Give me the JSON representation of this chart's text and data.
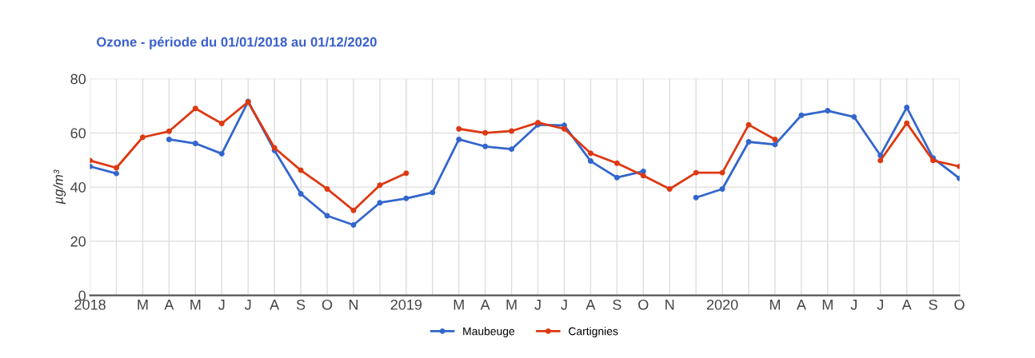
{
  "chart_data": {
    "type": "line",
    "title": "Ozone - période du 01/01/2018 au 01/12/2020",
    "ylabel": "µg/m³",
    "categories": [
      "2018",
      null,
      "M",
      "A",
      "M",
      "J",
      "J",
      "A",
      "S",
      "O",
      "N",
      null,
      "2019",
      null,
      "M",
      "A",
      "M",
      "J",
      "J",
      "A",
      "S",
      "O",
      "N",
      null,
      "2020",
      null,
      "M",
      "A",
      "M",
      "J",
      "J",
      "A",
      "S",
      "O"
    ],
    "series": [
      {
        "name": "Maubeuge",
        "color": "#3366cc",
        "values": [
          47.6,
          45,
          null,
          57.6,
          56.1,
          52.3,
          71.6,
          53.5,
          37.5,
          29.4,
          26,
          34.2,
          35.8,
          38,
          57.6,
          55,
          54,
          63,
          62.8,
          49.6,
          43.5,
          45.8,
          null,
          36.1,
          39.3,
          56.7,
          55.7,
          66.5,
          68.2,
          65.9,
          51.7,
          69.4,
          50.7,
          43.2
        ]
      },
      {
        "name": "Cartignies",
        "color": "#dc3912",
        "values": [
          49.8,
          47.1,
          58.4,
          60.6,
          69,
          63.5,
          71.4,
          54.5,
          46.2,
          39.3,
          31.4,
          40.7,
          45.1,
          null,
          61.5,
          60,
          60.7,
          63.8,
          61.5,
          52.5,
          48.8,
          44.2,
          39.3,
          45.3,
          45.3,
          63,
          57.6,
          null,
          null,
          null,
          49.8,
          63.6,
          49.8,
          47.6
        ]
      }
    ],
    "ylim": [
      0,
      80
    ],
    "yticks": [
      0,
      20,
      40,
      60,
      80
    ],
    "grid": true,
    "legend": "bottom",
    "marker": "circle",
    "line_style": "solid"
  }
}
